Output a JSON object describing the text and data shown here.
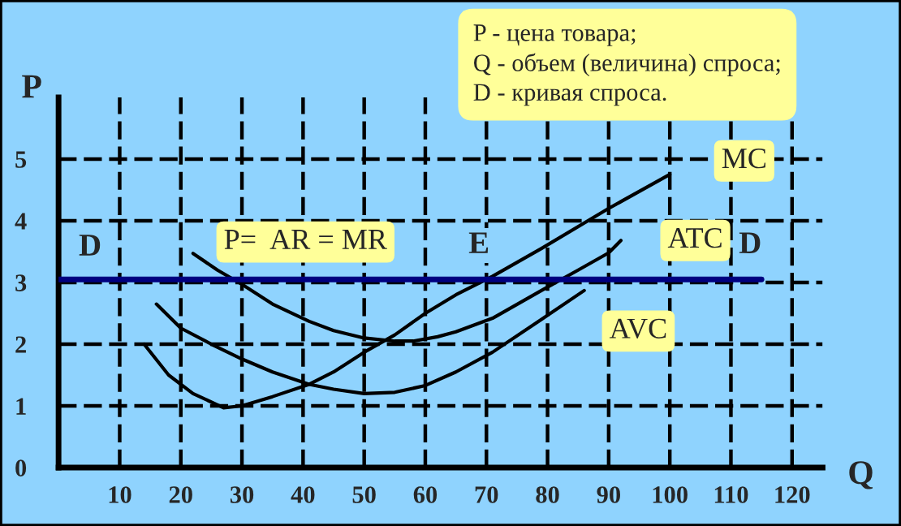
{
  "chart_data": {
    "type": "line",
    "xlabel": "Q",
    "ylabel": "P",
    "xlim": [
      0,
      125
    ],
    "ylim": [
      0,
      6
    ],
    "xticks": [
      10,
      20,
      30,
      40,
      50,
      60,
      70,
      80,
      90,
      100,
      110,
      120
    ],
    "yticks": [
      0,
      1,
      2,
      3,
      4,
      5
    ],
    "grid": true,
    "marker": "none",
    "line_style": "solid",
    "series": [
      {
        "name": "MC",
        "color": "#000000",
        "x": [
          14,
          18,
          22,
          27,
          30,
          35,
          41,
          45,
          50,
          55,
          60,
          65,
          71,
          79,
          90,
          100
        ],
        "values": [
          2.0,
          1.5,
          1.2,
          0.97,
          1.0,
          1.15,
          1.35,
          1.55,
          1.87,
          2.15,
          2.5,
          2.8,
          3.1,
          3.55,
          4.2,
          4.75
        ]
      },
      {
        "name": "ATC",
        "color": "#000000",
        "x": [
          22,
          26,
          30,
          35,
          41,
          45,
          50,
          55,
          58,
          62,
          65,
          71,
          79,
          85,
          90,
          92
        ],
        "values": [
          3.47,
          3.2,
          2.97,
          2.65,
          2.37,
          2.22,
          2.1,
          2.05,
          2.05,
          2.12,
          2.2,
          2.42,
          2.87,
          3.2,
          3.48,
          3.68
        ]
      },
      {
        "name": "AVC",
        "color": "#000000",
        "x": [
          16,
          20,
          25,
          30,
          35,
          41,
          45,
          50,
          55,
          60,
          65,
          71,
          79,
          86
        ],
        "values": [
          2.65,
          2.26,
          2.0,
          1.76,
          1.55,
          1.35,
          1.27,
          1.2,
          1.22,
          1.33,
          1.55,
          1.87,
          2.4,
          2.87
        ]
      },
      {
        "name": "D",
        "color": "#000080",
        "x": [
          0,
          115
        ],
        "values": [
          3.05,
          3.05
        ]
      }
    ],
    "annotations": [
      "P - цена товара;\nQ - объем (величина) спроса;\nD - кривая спроса.",
      "P=  AR = MR",
      {
        "text": "E",
        "x": 71,
        "y": 3.05
      }
    ]
  }
}
